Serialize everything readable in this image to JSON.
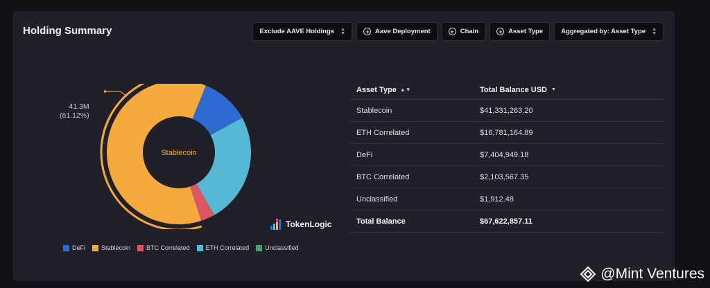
{
  "card": {
    "title": "Holding Summary"
  },
  "toolbar": {
    "exclude_label": "Exclude AAVE Holdings",
    "aave_deployment_label": "Aave Deployment",
    "chain_label": "Chain",
    "asset_type_label": "Asset Type",
    "aggregated_label": "Aggregated by: Asset Type"
  },
  "chart_data": {
    "type": "pie",
    "center_label": "Stablecoin",
    "callout": {
      "value": "41.3M",
      "percent": "(61.12%)"
    },
    "categories": [
      "DeFi",
      "Stablecoin",
      "BTC Correlated",
      "ETH Correlated",
      "Unclassified"
    ],
    "values": [
      7404949.18,
      41331263.2,
      2103567.35,
      16781164.89,
      1912.48
    ],
    "colors": [
      "#2d6bd3",
      "#f6a93d",
      "#dd5563",
      "#55b8d4",
      "#3fa56a"
    ],
    "legend_placement": "bottom"
  },
  "table": {
    "col_asset_type": "Asset Type",
    "col_total_balance": "Total Balance USD",
    "rows": [
      {
        "asset": "Stablecoin",
        "balance": "$41,331,263.20"
      },
      {
        "asset": "ETH Correlated",
        "balance": "$16,781,164.89"
      },
      {
        "asset": "DeFi",
        "balance": "$7,404,949.18"
      },
      {
        "asset": "BTC Correlated",
        "balance": "$2,103,567.35"
      },
      {
        "asset": "Unclassified",
        "balance": "$1,912.48"
      }
    ],
    "total_label": "Total Balance",
    "total_value": "$67,622,857.11"
  },
  "logo": {
    "text": "TokenLogic"
  },
  "watermark": {
    "text": "@Mint Ventures"
  },
  "icons": {
    "plus": "plus-circle-icon",
    "sort": "sort-icon",
    "caret": "caret-down-icon"
  }
}
